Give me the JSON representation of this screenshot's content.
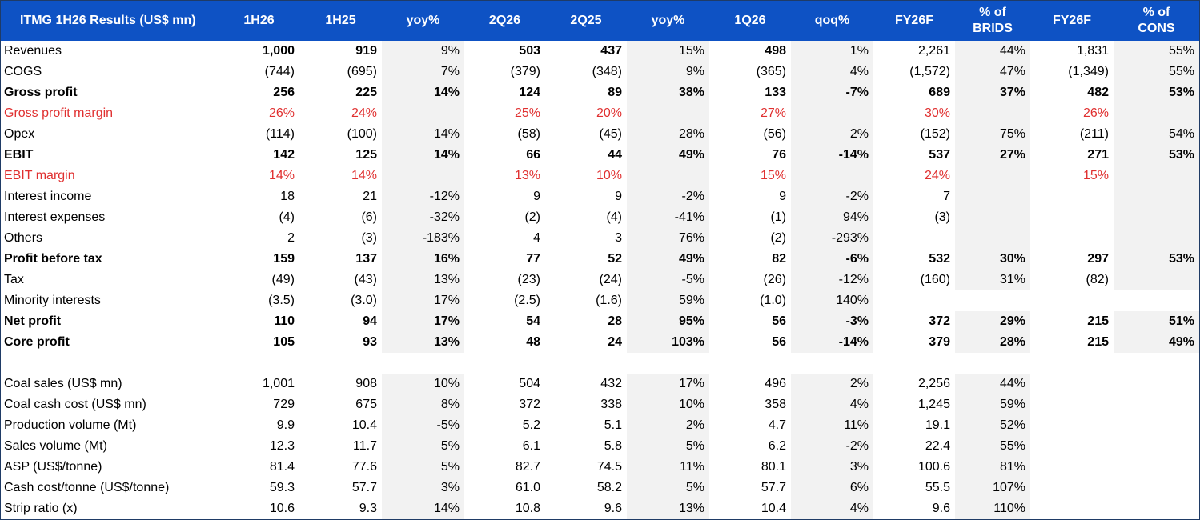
{
  "table": {
    "header": [
      "ITMG 1H26 Results (US$ mn)",
      "1H26",
      "1H25",
      "yoy%",
      "2Q26",
      "2Q25",
      "yoy%",
      "1Q26",
      "qoq%",
      "FY26F",
      "% of\nBRIDS",
      "FY26F",
      "% of\nCONS"
    ],
    "rows": [
      {
        "style": "normal",
        "cells": [
          "Revenues",
          "1,000",
          "919",
          "9%",
          "503",
          "437",
          "15%",
          "498",
          "1%",
          "2,261",
          "44%",
          "1,831",
          "55%"
        ],
        "shade": [
          3,
          6,
          8,
          10,
          12
        ],
        "bold_cols": [
          1,
          2,
          4,
          5,
          7
        ]
      },
      {
        "style": "normal",
        "cells": [
          "COGS",
          "(744)",
          "(695)",
          "7%",
          "(379)",
          "(348)",
          "9%",
          "(365)",
          "4%",
          "(1,572)",
          "47%",
          "(1,349)",
          "55%"
        ],
        "shade": [
          3,
          6,
          8,
          10,
          12
        ]
      },
      {
        "style": "bold",
        "cells": [
          "Gross profit",
          "256",
          "225",
          "14%",
          "124",
          "89",
          "38%",
          "133",
          "-7%",
          "689",
          "37%",
          "482",
          "53%"
        ],
        "shade": [
          3,
          6,
          8,
          10,
          12
        ]
      },
      {
        "style": "red",
        "cells": [
          "Gross profit margin",
          "26%",
          "24%",
          "",
          "25%",
          "20%",
          "",
          "27%",
          "",
          "30%",
          "",
          "26%",
          ""
        ],
        "shade": [
          3,
          6,
          8,
          10,
          12
        ]
      },
      {
        "style": "normal",
        "cells": [
          "Opex",
          "(114)",
          "(100)",
          "14%",
          "(58)",
          "(45)",
          "28%",
          "(56)",
          "2%",
          "(152)",
          "75%",
          "(211)",
          "54%"
        ],
        "shade": [
          3,
          6,
          8,
          10,
          12
        ]
      },
      {
        "style": "bold",
        "cells": [
          "EBIT",
          "142",
          "125",
          "14%",
          "66",
          "44",
          "49%",
          "76",
          "-14%",
          "537",
          "27%",
          "271",
          "53%"
        ],
        "shade": [
          3,
          6,
          8,
          10,
          12
        ]
      },
      {
        "style": "red",
        "cells": [
          "EBIT margin",
          "14%",
          "14%",
          "",
          "13%",
          "10%",
          "",
          "15%",
          "",
          "24%",
          "",
          "15%",
          ""
        ],
        "shade": [
          3,
          6,
          8,
          10,
          12
        ]
      },
      {
        "style": "normal",
        "cells": [
          "Interest income",
          "18",
          "21",
          "-12%",
          "9",
          "9",
          "-2%",
          "9",
          "-2%",
          "7",
          "",
          "",
          ""
        ],
        "shade": [
          3,
          6,
          8,
          10,
          12
        ]
      },
      {
        "style": "normal",
        "cells": [
          "Interest expenses",
          "(4)",
          "(6)",
          "-32%",
          "(2)",
          "(4)",
          "-41%",
          "(1)",
          "94%",
          "(3)",
          "",
          "",
          ""
        ],
        "shade": [
          3,
          6,
          8,
          10,
          12
        ]
      },
      {
        "style": "normal",
        "cells": [
          "Others",
          "2",
          "(3)",
          "-183%",
          "4",
          "3",
          "76%",
          "(2)",
          "-293%",
          "",
          "",
          "",
          ""
        ],
        "shade": [
          3,
          6,
          8,
          10,
          12
        ]
      },
      {
        "style": "bold",
        "cells": [
          "Profit before tax",
          "159",
          "137",
          "16%",
          "77",
          "52",
          "49%",
          "82",
          "-6%",
          "532",
          "30%",
          "297",
          "53%"
        ],
        "shade": [
          3,
          6,
          8,
          10,
          12
        ]
      },
      {
        "style": "normal",
        "cells": [
          "Tax",
          "(49)",
          "(43)",
          "13%",
          "(23)",
          "(24)",
          "-5%",
          "(26)",
          "-12%",
          "(160)",
          "31%",
          "(82)",
          ""
        ],
        "shade": [
          3,
          6,
          8,
          10,
          12
        ]
      },
      {
        "style": "normal",
        "cells": [
          "Minority interests",
          "(3.5)",
          "(3.0)",
          "17%",
          "(2.5)",
          "(1.6)",
          "59%",
          "(1.0)",
          "140%",
          "",
          "",
          "",
          ""
        ],
        "shade": [
          3,
          6,
          8
        ]
      },
      {
        "style": "bold",
        "cells": [
          "Net profit",
          "110",
          "94",
          "17%",
          "54",
          "28",
          "95%",
          "56",
          "-3%",
          "372",
          "29%",
          "215",
          "51%"
        ],
        "shade": [
          3,
          6,
          8,
          10,
          12
        ]
      },
      {
        "style": "bold",
        "cells": [
          "Core profit",
          "105",
          "93",
          "13%",
          "48",
          "24",
          "103%",
          "56",
          "-14%",
          "379",
          "28%",
          "215",
          "49%"
        ],
        "shade": [
          3,
          6,
          8,
          10,
          12
        ]
      },
      {
        "style": "blank",
        "cells": [
          "",
          "",
          "",
          "",
          "",
          "",
          "",
          "",
          "",
          "",
          "",
          "",
          ""
        ],
        "shade": []
      },
      {
        "style": "normal",
        "cells": [
          "Coal sales (US$ mn)",
          "1,001",
          "908",
          "10%",
          "504",
          "432",
          "17%",
          "496",
          "2%",
          "2,256",
          "44%",
          "",
          ""
        ],
        "shade": [
          3,
          6,
          8,
          10
        ]
      },
      {
        "style": "normal",
        "cells": [
          "Coal cash cost (US$ mn)",
          "729",
          "675",
          "8%",
          "372",
          "338",
          "10%",
          "358",
          "4%",
          "1,245",
          "59%",
          "",
          ""
        ],
        "shade": [
          3,
          6,
          8,
          10
        ]
      },
      {
        "style": "normal",
        "cells": [
          "Production volume (Mt)",
          "9.9",
          "10.4",
          "-5%",
          "5.2",
          "5.1",
          "2%",
          "4.7",
          "11%",
          "19.1",
          "52%",
          "",
          ""
        ],
        "shade": [
          3,
          6,
          8,
          10
        ]
      },
      {
        "style": "normal",
        "cells": [
          "Sales volume (Mt)",
          "12.3",
          "11.7",
          "5%",
          "6.1",
          "5.8",
          "5%",
          "6.2",
          "-2%",
          "22.4",
          "55%",
          "",
          ""
        ],
        "shade": [
          3,
          6,
          8,
          10
        ]
      },
      {
        "style": "normal",
        "cells": [
          "ASP (US$/tonne)",
          "81.4",
          "77.6",
          "5%",
          "82.7",
          "74.5",
          "11%",
          "80.1",
          "3%",
          "100.6",
          "81%",
          "",
          ""
        ],
        "shade": [
          3,
          6,
          8,
          10
        ]
      },
      {
        "style": "normal",
        "cells": [
          "Cash cost/tonne (US$/tonne)",
          "59.3",
          "57.7",
          "3%",
          "61.0",
          "58.2",
          "5%",
          "57.7",
          "6%",
          "55.5",
          "107%",
          "",
          ""
        ],
        "shade": [
          3,
          6,
          8,
          10
        ]
      },
      {
        "style": "normal",
        "cells": [
          "Strip ratio (x)",
          "10.6",
          "9.3",
          "14%",
          "10.8",
          "9.6",
          "13%",
          "10.4",
          "4%",
          "9.6",
          "110%",
          "",
          ""
        ],
        "shade": [
          3,
          6,
          8,
          10
        ]
      }
    ]
  }
}
